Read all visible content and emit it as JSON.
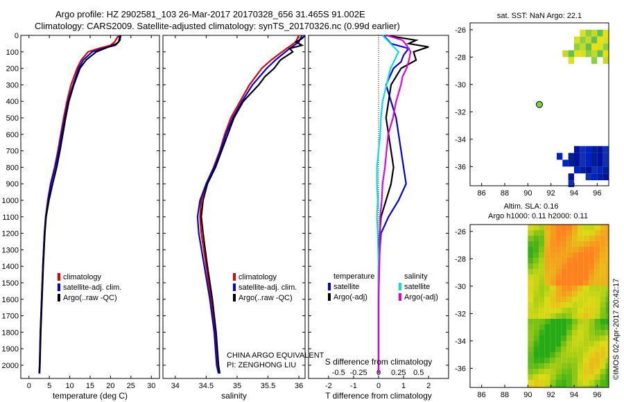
{
  "header": {
    "line1": "Argo profile: HZ 2902581_103 26-Mar-2017 20170328_656 31.465S 91.002E",
    "line2": "Climatology: CARS2009. Satellite-adjusted climatology: synTS_20170326.nc (0.99d earlier)"
  },
  "colors": {
    "climatology": "#e00000",
    "satellite": "#0000e0",
    "argo": "#000000",
    "sal_satellite": "#00e0e0",
    "sal_argo": "#e000e0"
  },
  "chart_data": [
    {
      "type": "line",
      "id": "temperature",
      "xlabel": "temperature (deg C)",
      "xlim": [
        -2,
        32
      ],
      "ylim": [
        0,
        2080
      ],
      "xticks": [
        "0",
        "5",
        "10",
        "15",
        "20",
        "25",
        "30"
      ],
      "xtick_values": [
        0,
        5,
        10,
        15,
        20,
        25,
        30
      ],
      "yticks": [
        "0",
        "100",
        "200",
        "300",
        "400",
        "500",
        "600",
        "700",
        "800",
        "900",
        "1000",
        "1100",
        "1200",
        "1300",
        "1400",
        "1500",
        "1600",
        "1700",
        "1800",
        "1900",
        "2000"
      ],
      "ytick_values": [
        0,
        100,
        200,
        300,
        400,
        500,
        600,
        700,
        800,
        900,
        1000,
        1100,
        1200,
        1300,
        1400,
        1500,
        1600,
        1700,
        1800,
        1900,
        2000
      ],
      "legend": [
        "climatology",
        "satellite-adj. clim.",
        "Argo(..raw -QC)"
      ],
      "series": [
        {
          "name": "climatology",
          "color": "#e00000",
          "depth": [
            0,
            40,
            60,
            80,
            100,
            150,
            200,
            300,
            400,
            500,
            600,
            700,
            800,
            900,
            1000,
            1100,
            1200,
            1400,
            1600,
            1800,
            2000,
            2050
          ],
          "values": [
            22,
            21,
            20,
            17,
            14.5,
            12.8,
            11.8,
            10.3,
            9.3,
            8.5,
            7.8,
            7.1,
            6.3,
            5.3,
            4.6,
            4.1,
            3.8,
            3.4,
            3.1,
            2.8,
            2.6,
            2.5
          ]
        },
        {
          "name": "satellite-adj. clim.",
          "color": "#0000e0",
          "depth": [
            0,
            40,
            60,
            80,
            100,
            150,
            200,
            300,
            400,
            500,
            600,
            700,
            800,
            900,
            1000,
            1100,
            1200,
            1400,
            1600,
            1800,
            2000,
            2050
          ],
          "values": [
            22.3,
            22,
            21.2,
            18,
            15.5,
            13.3,
            12.2,
            10.8,
            9.6,
            8.8,
            8,
            7.3,
            6.4,
            5.4,
            4.7,
            4.1,
            3.8,
            3.4,
            3.1,
            2.8,
            2.6,
            2.5
          ]
        },
        {
          "name": "Argo(..raw -QC)",
          "color": "#000000",
          "depth": [
            0,
            30,
            50,
            70,
            100,
            150,
            200,
            300,
            400,
            500,
            600,
            700,
            800,
            900,
            1000,
            1100,
            1200,
            1400,
            1600,
            1800,
            2000,
            2050
          ],
          "values": [
            22.5,
            22.3,
            21.5,
            19.5,
            16.5,
            14,
            12.5,
            11,
            9.8,
            9,
            8.3,
            7.6,
            6.8,
            5.8,
            4.9,
            4.2,
            3.9,
            3.5,
            3.2,
            2.9,
            2.7,
            2.6
          ]
        }
      ]
    },
    {
      "type": "line",
      "id": "salinity",
      "xlabel": "salinity",
      "xlim": [
        33.8,
        36.1
      ],
      "ylim": [
        0,
        2080
      ],
      "xticks": [
        "34",
        "34.5",
        "35",
        "35.5",
        "36"
      ],
      "xtick_values": [
        34,
        34.5,
        35,
        35.5,
        36
      ],
      "legend": [
        "climatology",
        "satellite-adj. clim.",
        "Argo(..raw -QC)"
      ],
      "series": [
        {
          "name": "climatology",
          "color": "#e00000",
          "depth": [
            0,
            40,
            80,
            150,
            200,
            300,
            400,
            500,
            600,
            700,
            800,
            900,
            1000,
            1100,
            1200,
            1400,
            1600,
            1800,
            2000,
            2050
          ],
          "values": [
            36,
            35.95,
            35.8,
            35.55,
            35.4,
            35.2,
            35.05,
            34.9,
            34.8,
            34.72,
            34.62,
            34.5,
            34.42,
            34.4,
            34.42,
            34.5,
            34.58,
            34.64,
            34.68,
            34.7
          ]
        },
        {
          "name": "satellite-adj. clim.",
          "color": "#0000e0",
          "depth": [
            0,
            40,
            80,
            150,
            200,
            300,
            400,
            500,
            600,
            700,
            800,
            900,
            1000,
            1100,
            1200,
            1400,
            1600,
            1800,
            2000,
            2050
          ],
          "values": [
            36.05,
            36,
            35.85,
            35.62,
            35.48,
            35.25,
            35.08,
            34.93,
            34.82,
            34.73,
            34.63,
            34.5,
            34.4,
            34.36,
            34.38,
            34.47,
            34.56,
            34.63,
            34.67,
            34.7
          ]
        },
        {
          "name": "Argo(..raw -QC)",
          "color": "#000000",
          "depth": [
            0,
            20,
            40,
            60,
            80,
            100,
            150,
            200,
            250,
            300,
            400,
            500,
            600,
            700,
            800,
            900,
            1000,
            1100,
            1200,
            1400,
            1600,
            1800,
            2000,
            2050
          ],
          "values": [
            36.1,
            36.05,
            35.95,
            36.05,
            35.85,
            35.9,
            35.7,
            35.6,
            35.45,
            35.35,
            35.1,
            34.95,
            34.85,
            34.75,
            34.65,
            34.52,
            34.45,
            34.42,
            34.45,
            34.52,
            34.6,
            34.66,
            34.7,
            34.72
          ]
        }
      ]
    },
    {
      "type": "line",
      "id": "difference",
      "xlabel": "T difference from climatology",
      "xlabel2": "S difference from climatology",
      "xlim": [
        -2.8,
        2.8
      ],
      "ylim": [
        0,
        2080
      ],
      "xticks": [
        "-2",
        "-1",
        "0",
        "1",
        "2"
      ],
      "xtick_values": [
        -2,
        -1,
        0,
        1,
        2
      ],
      "xticks2": [
        "-0.5",
        "-0.25",
        "0",
        "0.25",
        "0.5"
      ],
      "xtick2_values": [
        -0.5,
        -0.25,
        0,
        0.25,
        0.5
      ],
      "legend_titles": [
        "temperature",
        "salinity"
      ],
      "legend": [
        "satellite",
        "Argo(-adj)",
        "satellite",
        "Argo(-adj)"
      ],
      "series": [
        {
          "name": "T satellite",
          "color": "#0000e0",
          "depth": [
            0,
            50,
            80,
            120,
            160,
            200,
            300,
            400,
            500,
            600,
            700,
            800,
            900,
            1000,
            1100,
            1200,
            1400,
            1600,
            1800,
            2000,
            2050
          ],
          "values": [
            0.2,
            0.5,
            1.2,
            1.0,
            0.9,
            0.6,
            0.3,
            0.5,
            0.7,
            0.8,
            0.9,
            1.0,
            1.1,
            0.8,
            0.4,
            0.1,
            0.0,
            0.0,
            0.0,
            0.0,
            0.0
          ]
        },
        {
          "name": "T Argo(-adj)",
          "color": "#000000",
          "depth": [
            0,
            30,
            50,
            70,
            100,
            150,
            200,
            300,
            400,
            500,
            600,
            700,
            800,
            900,
            1000,
            1100,
            1200,
            1400,
            1600,
            1800,
            2000,
            2050
          ],
          "values": [
            0.3,
            1.5,
            1.2,
            2.0,
            1.4,
            1.5,
            0.9,
            0.5,
            0.4,
            0.3,
            0.4,
            0.5,
            0.6,
            0.5,
            0.3,
            0.1,
            0.05,
            0.0,
            0.0,
            0.0,
            0.0,
            0.0
          ]
        },
        {
          "name": "S satellite",
          "color": "#00e0e0",
          "depth": [
            0,
            50,
            100,
            150,
            200,
            300,
            400,
            500,
            600,
            700,
            800,
            900,
            1000,
            1100,
            1200,
            1400,
            1600,
            1800,
            2000,
            2050
          ],
          "values": [
            0.05,
            0.15,
            0.25,
            0.2,
            0.15,
            0.1,
            0.05,
            0.03,
            0.02,
            0.0,
            -0.02,
            -0.02,
            -0.01,
            -0.02,
            -0.01,
            0.0,
            0.0,
            0.0,
            0.0,
            0.0
          ]
        },
        {
          "name": "S Argo(-adj)",
          "color": "#e000e0",
          "depth": [
            0,
            30,
            60,
            100,
            150,
            200,
            250,
            300,
            400,
            500,
            600,
            700,
            800,
            900,
            1000,
            1100,
            1200,
            1400,
            1600,
            1800,
            2000,
            2050
          ],
          "values": [
            0.1,
            0.3,
            0.35,
            0.4,
            0.38,
            0.35,
            0.3,
            0.28,
            0.22,
            0.18,
            0.12,
            0.1,
            0.08,
            0.05,
            0.04,
            0.02,
            0.02,
            0.01,
            0.0,
            0.0,
            0.0,
            0.0
          ]
        }
      ]
    },
    {
      "type": "heatmap",
      "id": "sst_map",
      "title": "sat. SST: NaN Argo: 22.1",
      "xlim": [
        85,
        97
      ],
      "ylim": [
        -37.4,
        -25.5
      ],
      "xticks": [
        "86",
        "88",
        "90",
        "92",
        "94",
        "96"
      ],
      "xtick_values": [
        86,
        88,
        90,
        92,
        94,
        96
      ],
      "yticks": [
        "-26",
        "-28",
        "-30",
        "-32",
        "-34",
        "-36"
      ],
      "ytick_values": [
        -26,
        -28,
        -30,
        -32,
        -34,
        -36
      ],
      "argo_marker": {
        "lon": 91.0,
        "lat": -31.465
      }
    },
    {
      "type": "heatmap",
      "id": "sla_map",
      "title": "Altim. SLA: 0.16",
      "subtitle": "Argo h1000: 0.11 h2000: 0.11",
      "xlim": [
        85,
        97
      ],
      "ylim": [
        -37.4,
        -25.5
      ],
      "xticks": [
        "86",
        "88",
        "90",
        "92",
        "94",
        "96"
      ],
      "xtick_values": [
        86,
        88,
        90,
        92,
        94,
        96
      ],
      "yticks": [
        "-26",
        "-28",
        "-30",
        "-32",
        "-34",
        "-36"
      ],
      "ytick_values": [
        -26,
        -28,
        -30,
        -32,
        -34,
        -36
      ],
      "data_start_lon": 90
    }
  ],
  "annotations": {
    "institution": "CHINA ARGO EQUIVALENT",
    "pi": "PI: ZENGHONG LIU",
    "credit": "©IMOS 02-Apr-2017 20:42:17"
  }
}
